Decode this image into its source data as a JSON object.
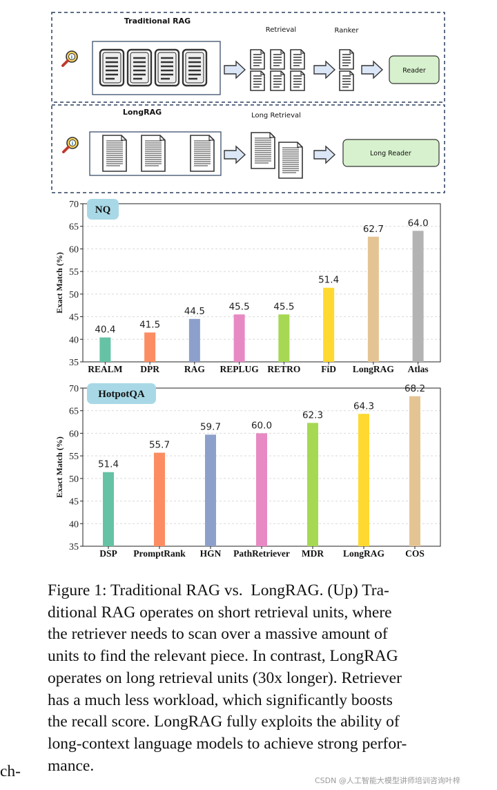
{
  "diagram": {
    "traditional": {
      "title": "Traditional RAG",
      "retrieval_label": "Retrieval",
      "ranker_label": "Ranker",
      "reader_label": "Reader"
    },
    "longrag": {
      "title": "LongRAG",
      "retrieval_label": "Long Retrieval",
      "reader_label": "Long Reader"
    },
    "icons": [
      "search-icon",
      "document-icon",
      "arrow-right-icon"
    ]
  },
  "chart_data": [
    {
      "type": "bar",
      "badge": "NQ",
      "ylabel": "Exact Match (%)",
      "ylim": [
        35,
        70
      ],
      "yticks": [
        "35",
        "40",
        "45",
        "50",
        "55",
        "60",
        "65",
        "70"
      ],
      "grid": true,
      "categories": [
        "REALM",
        "DPR",
        "RAG",
        "REPLUG",
        "RETRO",
        "FiD",
        "LongRAG",
        "Atlas"
      ],
      "values": [
        40.4,
        41.5,
        44.5,
        45.5,
        45.5,
        51.4,
        62.7,
        64.0
      ],
      "labels": [
        "40.4",
        "41.5",
        "44.5",
        "45.5",
        "45.5",
        "51.4",
        "62.7",
        "64.0"
      ],
      "colors": [
        "#66c2a5",
        "#fc8d62",
        "#8da0cb",
        "#e78ac3",
        "#a6d854",
        "#ffd92f",
        "#e5c494",
        "#b3b3b3"
      ]
    },
    {
      "type": "bar",
      "badge": "HotpotQA",
      "ylabel": "Exact Match (%)",
      "ylim": [
        35,
        70
      ],
      "yticks": [
        "35",
        "40",
        "45",
        "50",
        "55",
        "60",
        "65",
        "70"
      ],
      "grid": true,
      "categories": [
        "DSP",
        "PromptRank",
        "HGN",
        "PathRetriever",
        "MDR",
        "LongRAG",
        "COS"
      ],
      "values": [
        51.4,
        55.7,
        59.7,
        60.0,
        62.3,
        64.3,
        68.2
      ],
      "labels": [
        "51.4",
        "55.7",
        "59.7",
        "60.0",
        "62.3",
        "64.3",
        "68.2"
      ],
      "colors": [
        "#66c2a5",
        "#fc8d62",
        "#8da0cb",
        "#e78ac3",
        "#a6d854",
        "#ffd92f",
        "#e5c494"
      ]
    }
  ],
  "caption": {
    "lines": [
      "Figure 1: Traditional RAG vs.  LongRAG. (Up) Tra-",
      "ditional RAG operates on short retrieval units, where",
      "the retriever needs to scan over a massive amount of",
      "units to find the relevant piece. In contrast, LongRAG",
      "operates on long retrieval units (30x longer). Retriever",
      "has a much less workload, which significantly boosts",
      "the recall score. LongRAG fully exploits the ability of",
      "long-context language models to achieve strong perfor-",
      "mance."
    ]
  },
  "side_fragment": "ch-",
  "watermark": "CSDN @人工智能大模型讲师培训咨询叶梓"
}
